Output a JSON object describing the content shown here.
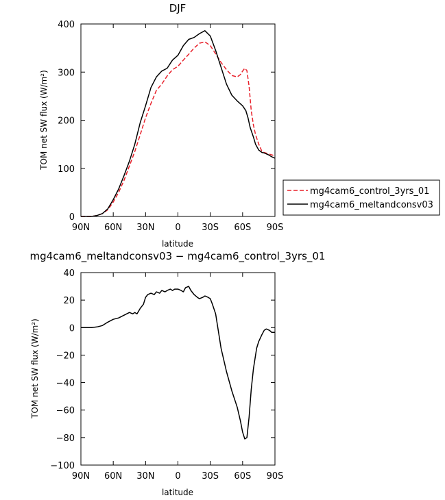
{
  "colors": {
    "control": "#e8202a",
    "meltandconsv": "#000000"
  },
  "chart_data": [
    {
      "type": "line",
      "title": "DJF",
      "xlabel": "latitude",
      "ylabel": "TOM net SW flux (W/m²)",
      "xlim": [
        90,
        -90
      ],
      "ylim": [
        0,
        400
      ],
      "x_ticks": [
        90,
        60,
        30,
        0,
        -30,
        -60,
        -90
      ],
      "x_tick_labels": [
        "90N",
        "60N",
        "30N",
        "0",
        "30S",
        "60S",
        "90S"
      ],
      "y_ticks": [
        0,
        100,
        200,
        300,
        400
      ],
      "y_tick_labels": [
        "0",
        "100",
        "200",
        "300",
        "400"
      ],
      "grid": false,
      "legend_position": "outside-right",
      "series": [
        {
          "name": "mg4cam6_control_3yrs_01",
          "style": "dashed",
          "color": "#e8202a",
          "x": [
            90,
            85,
            80,
            75,
            70,
            65,
            60,
            55,
            50,
            45,
            40,
            35,
            30,
            25,
            20,
            15,
            10,
            5,
            0,
            -5,
            -10,
            -15,
            -20,
            -25,
            -30,
            -35,
            -40,
            -45,
            -50,
            -55,
            -58,
            -60,
            -62,
            -64,
            -66,
            -68,
            -70,
            -72,
            -75,
            -78,
            -80,
            -84,
            -87,
            -90
          ],
          "y": [
            0,
            0,
            0,
            2,
            6,
            14,
            30,
            50,
            75,
            105,
            135,
            170,
            205,
            235,
            262,
            275,
            292,
            305,
            312,
            325,
            337,
            350,
            360,
            363,
            355,
            338,
            320,
            305,
            293,
            290,
            295,
            302,
            308,
            303,
            270,
            220,
            190,
            170,
            150,
            135,
            133,
            130,
            128,
            126
          ]
        },
        {
          "name": "mg4cam6_meltandconsv03",
          "style": "solid",
          "color": "#000000",
          "x": [
            90,
            85,
            80,
            75,
            70,
            65,
            60,
            55,
            50,
            45,
            40,
            35,
            30,
            25,
            20,
            15,
            10,
            5,
            0,
            -5,
            -10,
            -15,
            -20,
            -25,
            -30,
            -35,
            -40,
            -45,
            -50,
            -55,
            -60,
            -63,
            -65,
            -67,
            -70,
            -72,
            -75,
            -78,
            -80,
            -84,
            -87,
            -90
          ],
          "y": [
            0,
            0,
            0,
            2,
            6,
            16,
            35,
            57,
            85,
            115,
            150,
            195,
            230,
            268,
            290,
            302,
            308,
            325,
            335,
            355,
            368,
            372,
            380,
            386,
            375,
            345,
            310,
            275,
            252,
            240,
            230,
            220,
            205,
            185,
            165,
            150,
            138,
            133,
            132,
            128,
            124,
            121
          ]
        }
      ]
    },
    {
      "type": "line",
      "title": "mg4cam6_meltandconsv03 − mg4cam6_control_3yrs_01",
      "xlabel": "latitude",
      "ylabel": "TOM net SW flux (W/m²)",
      "xlim": [
        90,
        -90
      ],
      "ylim": [
        -100,
        40
      ],
      "x_ticks": [
        90,
        60,
        30,
        0,
        -30,
        -60,
        -90
      ],
      "x_tick_labels": [
        "90N",
        "60N",
        "30N",
        "0",
        "30S",
        "60S",
        "90S"
      ],
      "y_ticks": [
        40,
        20,
        0,
        -20,
        -40,
        -60,
        -80,
        -100
      ],
      "y_tick_labels": [
        "40",
        "20",
        "0",
        "−20",
        "−40",
        "−60",
        "−80",
        "−100"
      ],
      "grid": false,
      "series": [
        {
          "color": "#000000",
          "style": "solid",
          "x": [
            90,
            85,
            80,
            75,
            70,
            65,
            60,
            55,
            50,
            45,
            42,
            40,
            38,
            35,
            32,
            30,
            28,
            25,
            22,
            20,
            17,
            15,
            12,
            10,
            7,
            5,
            3,
            0,
            -3,
            -5,
            -7,
            -10,
            -12,
            -15,
            -18,
            -20,
            -23,
            -25,
            -28,
            -30,
            -32,
            -35,
            -40,
            -45,
            -50,
            -55,
            -58,
            -60,
            -62,
            -64,
            -66,
            -68,
            -70,
            -73,
            -75,
            -78,
            -80,
            -82,
            -85,
            -87,
            -90
          ],
          "y": [
            0,
            0,
            0,
            0.5,
            1.5,
            4,
            6,
            7,
            9,
            11,
            10,
            11,
            10,
            14,
            17,
            22,
            24,
            25,
            24,
            26,
            25,
            27,
            26,
            27,
            28,
            27,
            28,
            28,
            27,
            26,
            29,
            30,
            27,
            24,
            22,
            21,
            22,
            23,
            22,
            21,
            17,
            10,
            -15,
            -32,
            -46,
            -58,
            -68,
            -76,
            -81,
            -80,
            -65,
            -45,
            -30,
            -15,
            -10,
            -5,
            -2,
            -1,
            -2,
            -3.5,
            -3.5
          ]
        }
      ]
    }
  ]
}
